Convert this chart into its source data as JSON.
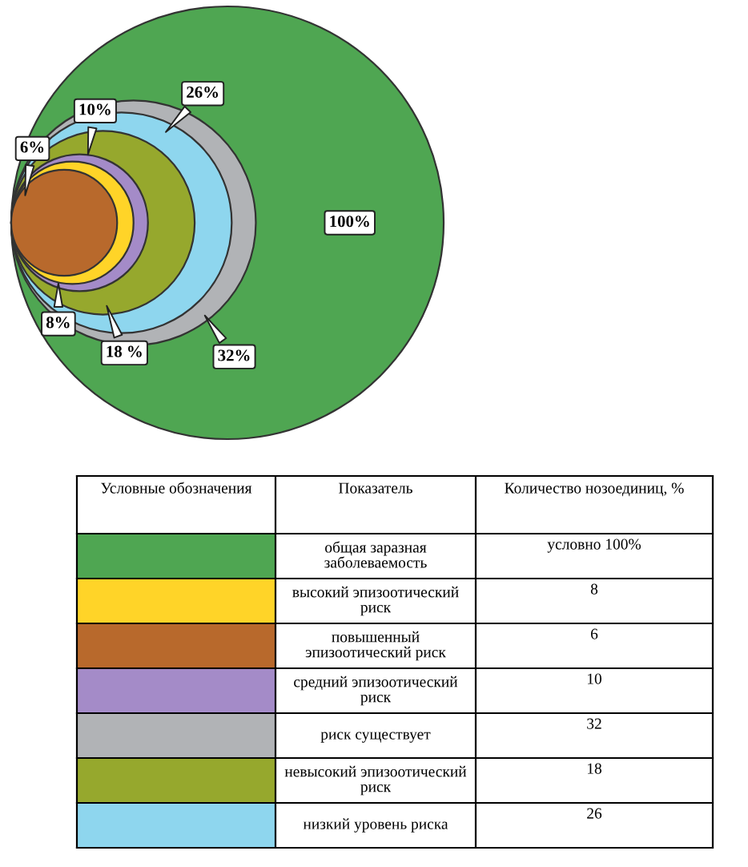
{
  "chart_data": {
    "type": "other",
    "categories": [
      "общая заразная заболеваемость",
      "высокий эпизоотический риск",
      "повышенный эпизоотический риск",
      "средний эпизоотический риск",
      "риск существует",
      "невысокий эпизоотический риск",
      "низкий уровень риска"
    ],
    "values": [
      100,
      8,
      6,
      10,
      32,
      18,
      26
    ],
    "colors": [
      "#4fa652",
      "#ffd428",
      "#b8692c",
      "#a48bc8",
      "#b1b3b6",
      "#96a82d",
      "#8ed6ee"
    ],
    "value_labels": [
      "условно 100%",
      "8",
      "6",
      "10",
      "32",
      "18",
      "26"
    ],
    "annotations": [
      "Условные обозначения",
      "Показатель",
      "Количество нозоединиц, %",
      "100%",
      "8%",
      "6%",
      "10%",
      "32%",
      "18 %",
      "26%"
    ]
  }
}
